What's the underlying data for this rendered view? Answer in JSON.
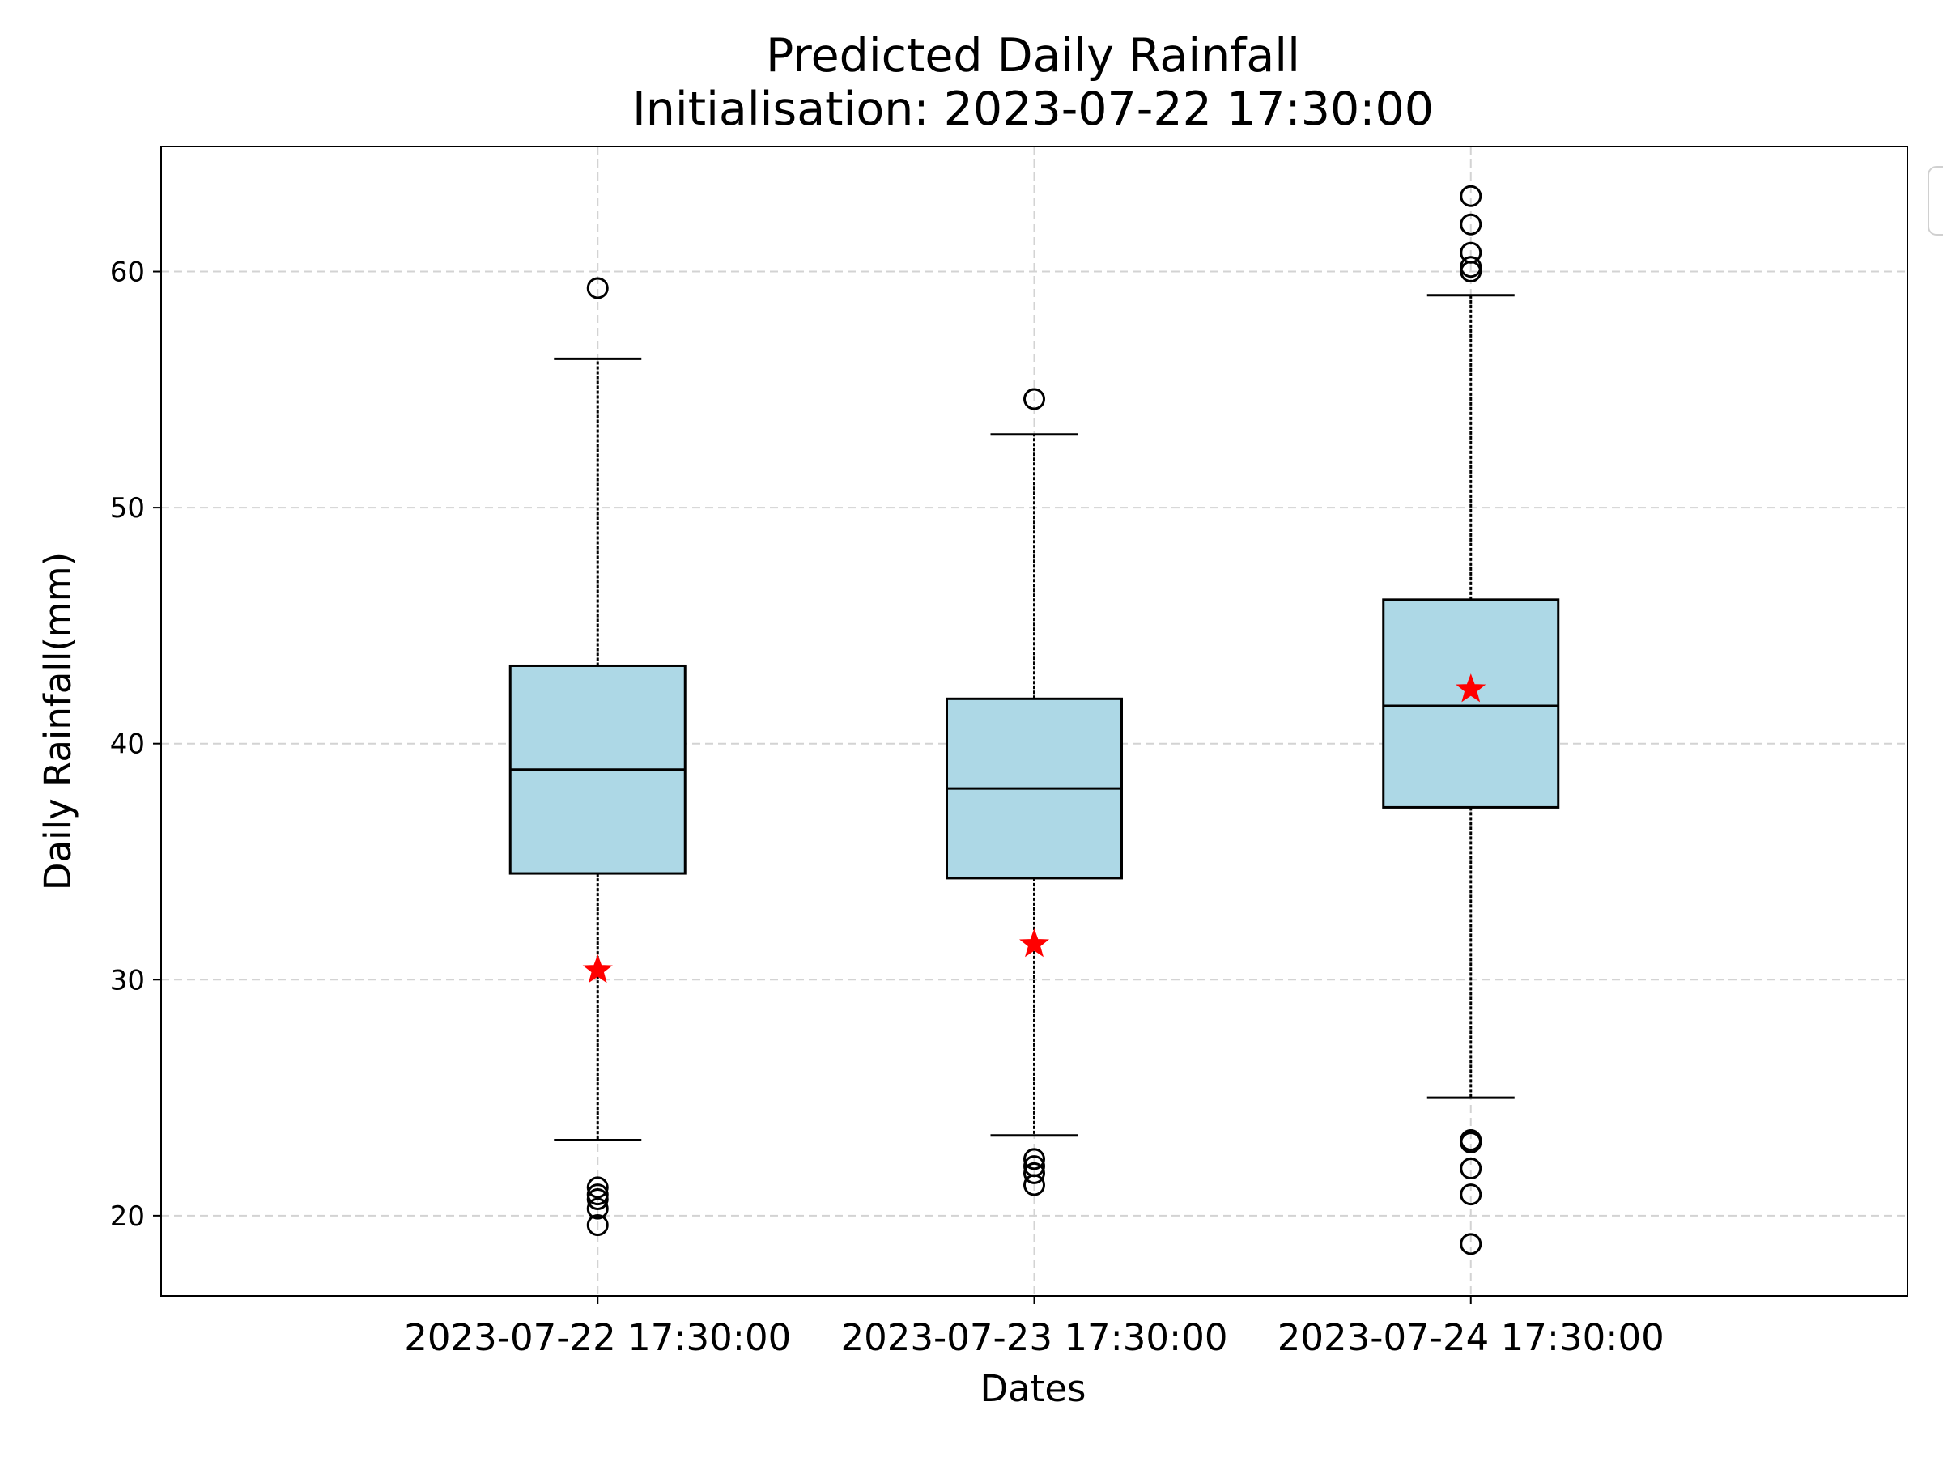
{
  "chart_data": {
    "type": "box",
    "title": "Predicted Daily Rainfall",
    "subtitle": "Initialisation: 2023-07-22 17:30:00",
    "xlabel": "Dates",
    "ylabel": "Daily Rainfall(mm)",
    "ylim": [
      16.6,
      65.3
    ],
    "yticks": [
      20,
      30,
      40,
      50,
      60
    ],
    "grid": true,
    "legend": "top-right (empty)",
    "colors": {
      "box_fill": "#add8e6",
      "box_edge": "#000000",
      "median": "#000000",
      "marker": "#ff0000",
      "grid": "#d3d3d3"
    },
    "categories": [
      "2023-07-22 17:30:00",
      "2023-07-23 17:30:00",
      "2023-07-24 17:30:00"
    ],
    "boxes": [
      {
        "whisker_low": 23.2,
        "q1": 34.5,
        "median": 38.9,
        "q3": 43.3,
        "whisker_high": 56.3,
        "outliers": [
          19.6,
          20.3,
          20.7,
          20.9,
          21.2,
          59.3
        ],
        "marker": 30.4
      },
      {
        "whisker_low": 23.4,
        "q1": 34.3,
        "median": 38.1,
        "q3": 41.9,
        "whisker_high": 53.1,
        "outliers": [
          21.3,
          21.8,
          22.1,
          22.4,
          54.6
        ],
        "marker": 31.5
      },
      {
        "whisker_low": 25.0,
        "q1": 37.3,
        "median": 41.6,
        "q3": 46.1,
        "whisker_high": 59.0,
        "outliers": [
          18.8,
          20.9,
          22.0,
          23.1,
          23.2,
          60.0,
          60.2,
          60.8,
          62.0,
          63.2
        ],
        "marker": 42.3
      }
    ]
  }
}
